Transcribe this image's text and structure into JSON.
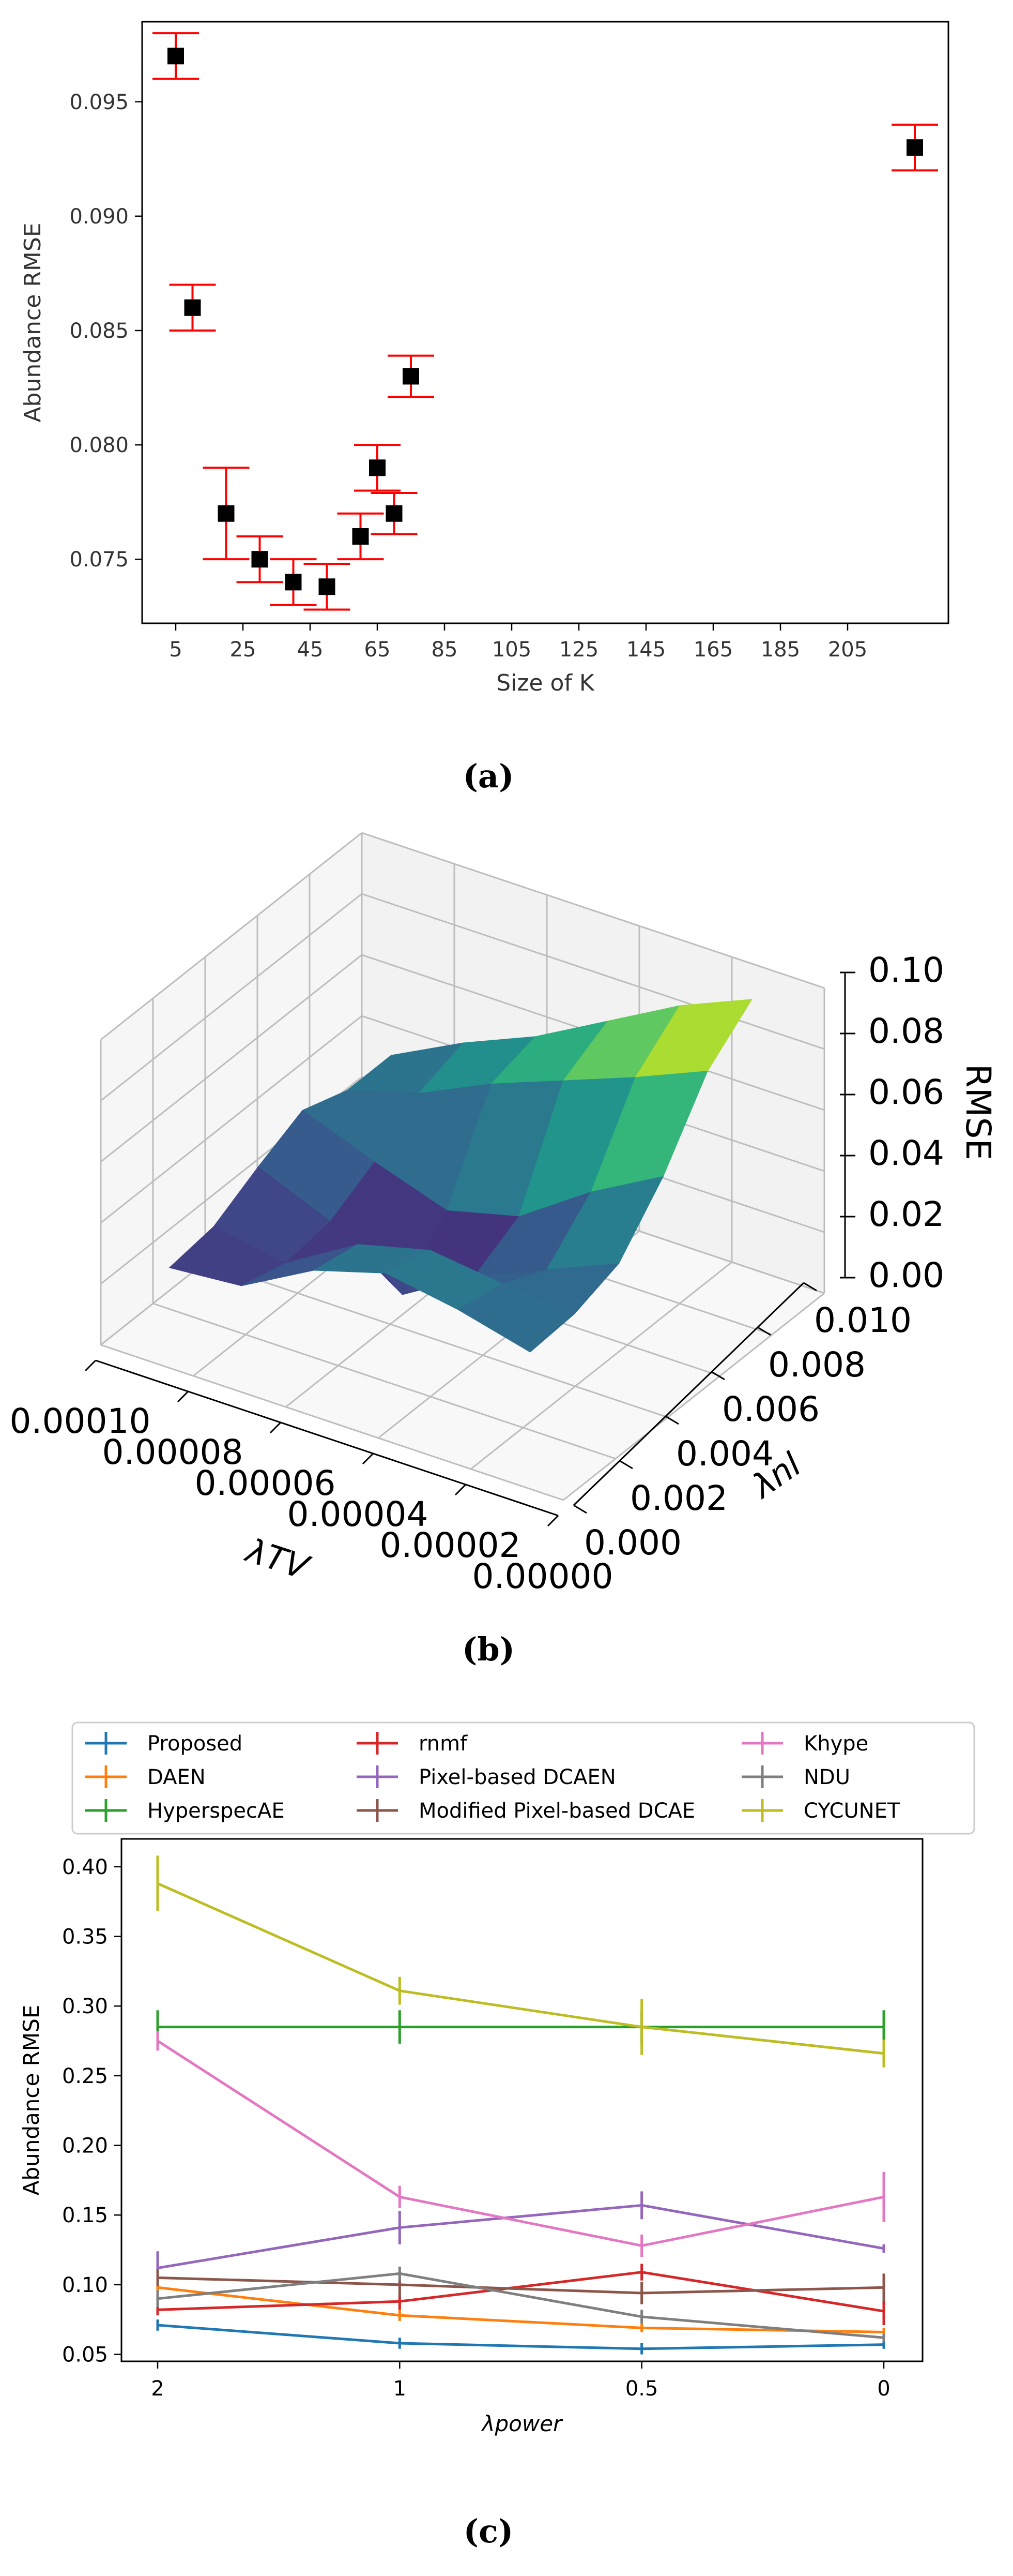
{
  "chart_data": [
    {
      "type": "scatter",
      "panel_label": "(a)",
      "xlabel": "Size of K",
      "ylabel": "Abundance RMSE",
      "xticks": [
        5,
        25,
        45,
        65,
        85,
        105,
        125,
        145,
        165,
        185,
        205
      ],
      "yticks": [
        0.075,
        0.08,
        0.085,
        0.09,
        0.095
      ],
      "xlim": [
        -5,
        235
      ],
      "ylim": [
        0.0722,
        0.0985
      ],
      "marker_color": "#000000",
      "error_color": "#ff0000",
      "points": [
        {
          "x": 5,
          "y": 0.097,
          "err": 0.001
        },
        {
          "x": 10,
          "y": 0.086,
          "err": 0.001
        },
        {
          "x": 20,
          "y": 0.077,
          "err": 0.002
        },
        {
          "x": 30,
          "y": 0.075,
          "err": 0.001
        },
        {
          "x": 40,
          "y": 0.074,
          "err": 0.001
        },
        {
          "x": 50,
          "y": 0.0738,
          "err": 0.001
        },
        {
          "x": 60,
          "y": 0.076,
          "err": 0.001
        },
        {
          "x": 65,
          "y": 0.079,
          "err": 0.001
        },
        {
          "x": 70,
          "y": 0.077,
          "err": 0.0009
        },
        {
          "x": 75,
          "y": 0.083,
          "err": 0.0009
        },
        {
          "x": 225,
          "y": 0.093,
          "err": 0.001
        }
      ]
    },
    {
      "type": "surface",
      "panel_label": "(b)",
      "xlabel": "λTV",
      "ylabel": "λnl",
      "zlabel": "RMSE",
      "xticks": [
        "0.00010",
        "0.00008",
        "0.00006",
        "0.00004",
        "0.00002",
        "0.00000"
      ],
      "yticks": [
        "0.000",
        "0.002",
        "0.004",
        "0.006",
        "0.008",
        "0.010"
      ],
      "zticks": [
        "0.00",
        "0.02",
        "0.04",
        "0.06",
        "0.08",
        "0.10"
      ],
      "colormap": "viridis",
      "z_grid": [
        [
          0.04,
          0.052,
          0.062,
          0.075,
          0.088,
          0.098
        ],
        [
          0.04,
          0.047,
          0.058,
          0.067,
          0.076,
          0.086
        ],
        [
          0.045,
          0.036,
          0.028,
          0.034,
          0.05,
          0.063
        ],
        [
          0.038,
          0.028,
          0.012,
          0.026,
          0.036,
          0.046
        ],
        [
          0.03,
          0.026,
          0.04,
          0.046,
          0.043,
          0.041
        ],
        [
          0.028,
          0.03,
          0.043,
          0.05,
          0.046,
          0.04
        ]
      ]
    },
    {
      "type": "line",
      "panel_label": "(c)",
      "xlabel": "λpower",
      "ylabel": "Abundance RMSE",
      "categories": [
        "2",
        "1",
        "0.5",
        "0"
      ],
      "yticks": [
        0.05,
        0.1,
        0.15,
        0.2,
        0.25,
        0.3,
        0.35,
        0.4
      ],
      "ylim": [
        0.045,
        0.42
      ],
      "series": [
        {
          "name": "Proposed",
          "color": "#1f77b4",
          "values": [
            0.071,
            0.058,
            0.054,
            0.057
          ],
          "err": [
            0.004,
            0.004,
            0.004,
            0.003
          ]
        },
        {
          "name": "DAEN",
          "color": "#ff7f0e",
          "values": [
            0.098,
            0.078,
            0.069,
            0.066
          ],
          "err": [
            0.004,
            0.004,
            0.003,
            0.003
          ]
        },
        {
          "name": "HyperspecAE",
          "color": "#2ca02c",
          "values": [
            0.285,
            0.285,
            0.285,
            0.285
          ],
          "err": [
            0.012,
            0.012,
            0.012,
            0.012
          ]
        },
        {
          "name": "rnmf",
          "color": "#d62728",
          "values": [
            0.082,
            0.088,
            0.109,
            0.081
          ],
          "err": [
            0.004,
            0.006,
            0.006,
            0.01
          ]
        },
        {
          "name": "Pixel-based DCAEN",
          "color": "#9467bd",
          "values": [
            0.112,
            0.141,
            0.157,
            0.126
          ],
          "err": [
            0.012,
            0.012,
            0.01,
            0.003
          ]
        },
        {
          "name": "Modified Pixel-based DCAE",
          "color": "#8c564b",
          "values": [
            0.105,
            0.1,
            0.094,
            0.098
          ],
          "err": [
            0.006,
            0.009,
            0.008,
            0.01
          ]
        },
        {
          "name": "Khype",
          "color": "#e377c2",
          "values": [
            0.275,
            0.163,
            0.128,
            0.163
          ],
          "err": [
            0.007,
            0.008,
            0.008,
            0.018
          ]
        },
        {
          "name": "NDU",
          "color": "#7f7f7f",
          "values": [
            0.09,
            0.108,
            0.077,
            0.062
          ],
          "err": [
            0.006,
            0.005,
            0.005,
            0.003
          ]
        },
        {
          "name": "CYCUNET",
          "color": "#bcbd22",
          "values": [
            0.388,
            0.311,
            0.285,
            0.266
          ],
          "err": [
            0.02,
            0.01,
            0.02,
            0.01
          ]
        }
      ]
    }
  ]
}
